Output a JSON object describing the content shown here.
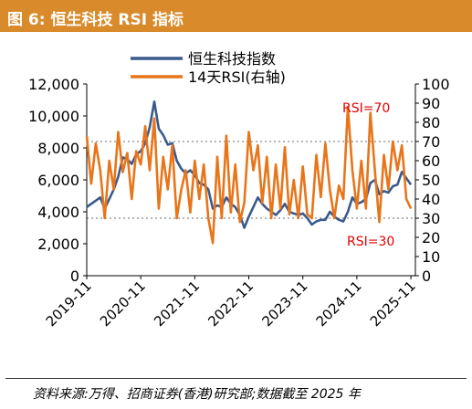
{
  "figure": {
    "title": "图 6:  恒生科技 RSI 指标",
    "source": "资料来源:万得、招商证券(香港)研究部;数据截至 2025 年"
  },
  "colors": {
    "index": "#3a5a8c",
    "rsi": "#e8751a",
    "threshold_text": "#e00000",
    "title_bg": "#d98b2b"
  },
  "chart_data": {
    "type": "line",
    "legend_position": "top",
    "grid": false,
    "x_ticks": [
      "2019-11",
      "2020-11",
      "2021-11",
      "2022-11",
      "2023-11",
      "2024-11",
      "2025-11"
    ],
    "x_range": [
      "2019-11",
      "2025-12"
    ],
    "y_left": {
      "lim": [
        0,
        12000
      ],
      "ticks": [
        0,
        2000,
        4000,
        6000,
        8000,
        10000,
        12000
      ],
      "tick_labels": [
        "0",
        "2,000",
        "4,000",
        "6,000",
        "8,000",
        "10,000",
        "12,000"
      ]
    },
    "y_right": {
      "lim": [
        0,
        100
      ],
      "ticks": [
        0,
        10,
        20,
        30,
        40,
        50,
        60,
        70,
        80,
        90,
        100
      ],
      "tick_labels": [
        "0",
        "10",
        "20",
        "30",
        "40",
        "50",
        "60",
        "70",
        "80",
        "90",
        "100"
      ]
    },
    "thresholds": [
      {
        "value": 70,
        "label": "RSI=70"
      },
      {
        "value": 30,
        "label": "RSI=30"
      }
    ],
    "series": [
      {
        "name": "恒生科技指数",
        "axis": "left",
        "points": [
          [
            "2019-11",
            4300
          ],
          [
            "2019-12",
            4500
          ],
          [
            "2020-01",
            4700
          ],
          [
            "2020-02",
            4900
          ],
          [
            "2020-03",
            4200
          ],
          [
            "2020-04",
            4800
          ],
          [
            "2020-05",
            5400
          ],
          [
            "2020-06",
            6200
          ],
          [
            "2020-07",
            7400
          ],
          [
            "2020-08",
            7300
          ],
          [
            "2020-09",
            7000
          ],
          [
            "2020-10",
            7600
          ],
          [
            "2020-11",
            7800
          ],
          [
            "2020-12",
            8300
          ],
          [
            "2021-01",
            9300
          ],
          [
            "2021-02",
            10900
          ],
          [
            "2021-03",
            9200
          ],
          [
            "2021-04",
            8800
          ],
          [
            "2021-05",
            8200
          ],
          [
            "2021-06",
            8300
          ],
          [
            "2021-07",
            7200
          ],
          [
            "2021-08",
            6700
          ],
          [
            "2021-09",
            6400
          ],
          [
            "2021-10",
            6600
          ],
          [
            "2021-11",
            6300
          ],
          [
            "2021-12",
            5800
          ],
          [
            "2022-01",
            5700
          ],
          [
            "2022-02",
            5400
          ],
          [
            "2022-03",
            4200
          ],
          [
            "2022-04",
            4400
          ],
          [
            "2022-05",
            4300
          ],
          [
            "2022-06",
            4900
          ],
          [
            "2022-07",
            4500
          ],
          [
            "2022-08",
            4300
          ],
          [
            "2022-09",
            3800
          ],
          [
            "2022-10",
            3000
          ],
          [
            "2022-11",
            3700
          ],
          [
            "2022-12",
            4300
          ],
          [
            "2023-01",
            4900
          ],
          [
            "2023-02",
            4500
          ],
          [
            "2023-03",
            4200
          ],
          [
            "2023-04",
            4000
          ],
          [
            "2023-05",
            3800
          ],
          [
            "2023-06",
            4100
          ],
          [
            "2023-07",
            4500
          ],
          [
            "2023-08",
            4000
          ],
          [
            "2023-09",
            3900
          ],
          [
            "2023-10",
            3800
          ],
          [
            "2023-11",
            3900
          ],
          [
            "2023-12",
            3600
          ],
          [
            "2024-01",
            3200
          ],
          [
            "2024-02",
            3400
          ],
          [
            "2024-03",
            3500
          ],
          [
            "2024-04",
            3500
          ],
          [
            "2024-05",
            4000
          ],
          [
            "2024-06",
            3700
          ],
          [
            "2024-07",
            3500
          ],
          [
            "2024-08",
            3400
          ],
          [
            "2024-09",
            4000
          ],
          [
            "2024-10",
            4900
          ],
          [
            "2024-11",
            4500
          ],
          [
            "2024-12",
            4600
          ],
          [
            "2025-01",
            4800
          ],
          [
            "2025-02",
            5800
          ],
          [
            "2025-03",
            6000
          ],
          [
            "2025-04",
            5100
          ],
          [
            "2025-05",
            5300
          ],
          [
            "2025-06",
            5200
          ],
          [
            "2025-07",
            5600
          ],
          [
            "2025-08",
            5700
          ],
          [
            "2025-09",
            6500
          ],
          [
            "2025-10",
            6100
          ],
          [
            "2025-11",
            5700
          ]
        ]
      },
      {
        "name": "14天RSI(右轴)",
        "axis": "right",
        "points": [
          [
            "2019-11",
            73
          ],
          [
            "2019-12",
            48
          ],
          [
            "2020-01",
            69
          ],
          [
            "2020-02",
            55
          ],
          [
            "2020-03",
            30
          ],
          [
            "2020-04",
            60
          ],
          [
            "2020-05",
            45
          ],
          [
            "2020-06",
            75
          ],
          [
            "2020-07",
            54
          ],
          [
            "2020-08",
            64
          ],
          [
            "2020-09",
            40
          ],
          [
            "2020-10",
            65
          ],
          [
            "2020-11",
            58
          ],
          [
            "2020-12",
            78
          ],
          [
            "2021-01",
            55
          ],
          [
            "2021-02",
            82
          ],
          [
            "2021-03",
            35
          ],
          [
            "2021-04",
            62
          ],
          [
            "2021-05",
            45
          ],
          [
            "2021-06",
            68
          ],
          [
            "2021-07",
            30
          ],
          [
            "2021-08",
            45
          ],
          [
            "2021-09",
            55
          ],
          [
            "2021-10",
            33
          ],
          [
            "2021-11",
            60
          ],
          [
            "2021-12",
            40
          ],
          [
            "2022-01",
            58
          ],
          [
            "2022-02",
            30
          ],
          [
            "2022-03",
            17
          ],
          [
            "2022-04",
            62
          ],
          [
            "2022-05",
            30
          ],
          [
            "2022-06",
            73
          ],
          [
            "2022-07",
            33
          ],
          [
            "2022-08",
            58
          ],
          [
            "2022-09",
            28
          ],
          [
            "2022-10",
            38
          ],
          [
            "2022-11",
            75
          ],
          [
            "2022-12",
            55
          ],
          [
            "2023-01",
            68
          ],
          [
            "2023-02",
            38
          ],
          [
            "2023-03",
            62
          ],
          [
            "2023-04",
            30
          ],
          [
            "2023-05",
            58
          ],
          [
            "2023-06",
            35
          ],
          [
            "2023-07",
            67
          ],
          [
            "2023-08",
            32
          ],
          [
            "2023-09",
            50
          ],
          [
            "2023-10",
            30
          ],
          [
            "2023-11",
            57
          ],
          [
            "2023-12",
            32
          ],
          [
            "2024-01",
            30
          ],
          [
            "2024-02",
            63
          ],
          [
            "2024-03",
            41
          ],
          [
            "2024-04",
            69
          ],
          [
            "2024-05",
            45
          ],
          [
            "2024-06",
            30
          ],
          [
            "2024-07",
            47
          ],
          [
            "2024-08",
            40
          ],
          [
            "2024-09",
            88
          ],
          [
            "2024-10",
            55
          ],
          [
            "2024-11",
            35
          ],
          [
            "2024-12",
            60
          ],
          [
            "2025-01",
            35
          ],
          [
            "2025-02",
            85
          ],
          [
            "2025-03",
            55
          ],
          [
            "2025-04",
            28
          ],
          [
            "2025-05",
            63
          ],
          [
            "2025-06",
            45
          ],
          [
            "2025-07",
            70
          ],
          [
            "2025-08",
            55
          ],
          [
            "2025-09",
            68
          ],
          [
            "2025-10",
            40
          ],
          [
            "2025-11",
            35
          ]
        ]
      }
    ]
  }
}
